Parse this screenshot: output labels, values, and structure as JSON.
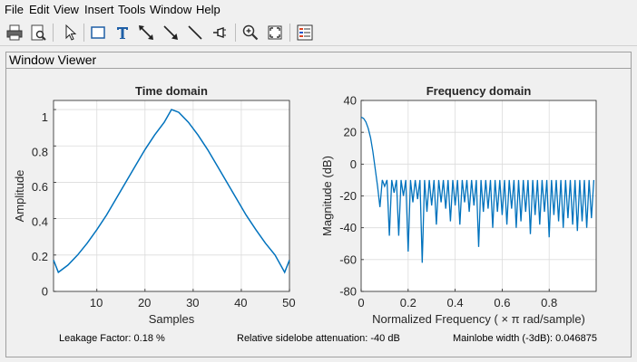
{
  "menu": [
    "File",
    "Edit",
    "View",
    "Insert",
    "Tools",
    "Window",
    "Help"
  ],
  "toolbar": {
    "icons": [
      "print-icon",
      "print-preview-icon",
      "select-pointer-icon",
      "rectangle-icon",
      "text-icon",
      "double-arrow-icon",
      "arrow-icon",
      "line-icon",
      "pin-icon",
      "zoom-in-icon",
      "fit-view-icon",
      "legend-icon"
    ]
  },
  "panel": {
    "title": "Window Viewer"
  },
  "time_plot": {
    "title": "Time domain",
    "xlabel": "Samples",
    "ylabel": "Amplitude",
    "xticks": [
      "10",
      "20",
      "30",
      "40",
      "50"
    ],
    "yticks": [
      "0",
      "0.2",
      "0.4",
      "0.6",
      "0.8",
      "1"
    ]
  },
  "freq_plot": {
    "title": "Frequency domain",
    "xlabel": "Normalized Frequency  ( × π rad/sample)",
    "ylabel": "Magnitude (dB)",
    "xticks": [
      "0",
      "0.2",
      "0.4",
      "0.6",
      "0.8"
    ],
    "yticks": [
      "40",
      "20",
      "0",
      "-20",
      "-40",
      "-60",
      "-80"
    ]
  },
  "status": {
    "leakage": "Leakage Factor: 0.18 %",
    "sidelobe": "Relative sidelobe attenuation: -40 dB",
    "mainlobe": "Mainlobe width (-3dB): 0.046875"
  },
  "colors": {
    "line": "#0072bd",
    "grid": "#dcdcdc",
    "axes": "#262626"
  },
  "chart_data": [
    {
      "type": "line",
      "title": "Time domain",
      "xlabel": "Samples",
      "ylabel": "Amplitude",
      "xlim": [
        1,
        50
      ],
      "ylim": [
        0,
        1.05
      ],
      "grid": true,
      "x": [
        1,
        2,
        4,
        6,
        8,
        10,
        12,
        14,
        16,
        18,
        20,
        22,
        24,
        25.5,
        27,
        29,
        31,
        33,
        35,
        37,
        39,
        41,
        43,
        45,
        47,
        49,
        50
      ],
      "series": [
        {
          "values": [
            0.172,
            0.105,
            0.145,
            0.2,
            0.265,
            0.34,
            0.42,
            0.51,
            0.6,
            0.69,
            0.78,
            0.86,
            0.93,
            1.0,
            0.985,
            0.93,
            0.86,
            0.78,
            0.69,
            0.6,
            0.51,
            0.42,
            0.34,
            0.265,
            0.2,
            0.105,
            0.172
          ]
        }
      ]
    },
    {
      "type": "line",
      "title": "Frequency domain",
      "xlabel": "Normalized Frequency  ( × π rad/sample)",
      "ylabel": "Magnitude (dB)",
      "xlim": [
        0,
        1
      ],
      "ylim": [
        -80,
        40
      ],
      "grid": true,
      "mainlobe": {
        "x": [
          0,
          0.01,
          0.02,
          0.03,
          0.04,
          0.05,
          0.06,
          0.07
        ],
        "y": [
          29.5,
          28.8,
          26.5,
          22.5,
          16.5,
          8,
          -3,
          -14
        ]
      },
      "sidelobes": {
        "x_start": 0.08,
        "spacing": 0.02,
        "count": 46,
        "peak_db": -10,
        "null_db": [
          -27,
          -14,
          -45,
          -18,
          -45,
          -20,
          -55,
          -24,
          -22,
          -62,
          -30,
          -26,
          -38,
          -24,
          -28,
          -36,
          -26,
          -38,
          -24,
          -30,
          -26,
          -52,
          -30,
          -28,
          -40,
          -30,
          -32,
          -38,
          -28,
          -40,
          -36,
          -30,
          -44,
          -32,
          -38,
          -30,
          -46,
          -32,
          -36,
          -40,
          -34,
          -38,
          -42,
          -36,
          -40,
          -34
        ]
      }
    }
  ]
}
